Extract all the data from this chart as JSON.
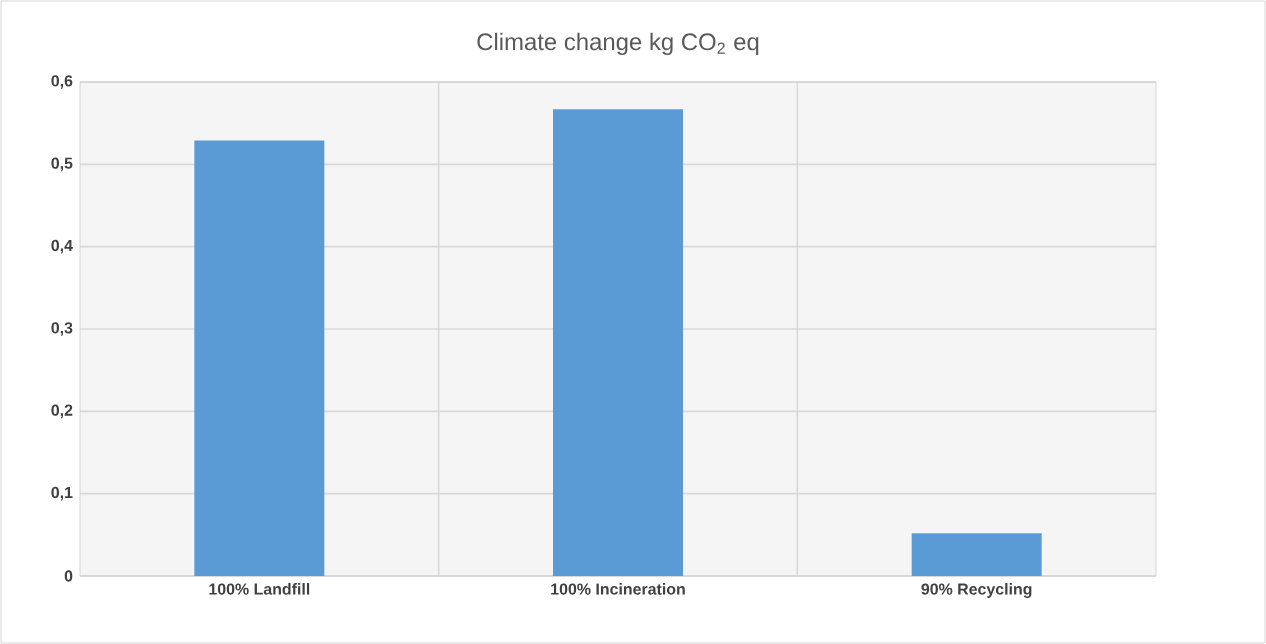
{
  "chart_data": {
    "type": "bar",
    "title": "Climate change kg CO$_{2}$ eq",
    "categories": [
      "100% Landfill",
      "100% Incineration",
      "90% Recycling"
    ],
    "values": [
      0.529,
      0.567,
      0.052
    ],
    "color": "#5b9bd5",
    "ylim": [
      0,
      0.6
    ],
    "yticks": [
      0,
      {
        "value": 0.1,
        "label": "0,1"
      },
      {
        "value": 0.2,
        "label": "0,2"
      },
      {
        "value": 0.3,
        "label": "0,3"
      },
      {
        "value": 0.4,
        "label": "0,4"
      },
      {
        "value": 0.5,
        "label": "0,5"
      },
      {
        "value": 0.6,
        "label": "0,6"
      }
    ],
    "grid": true
  }
}
